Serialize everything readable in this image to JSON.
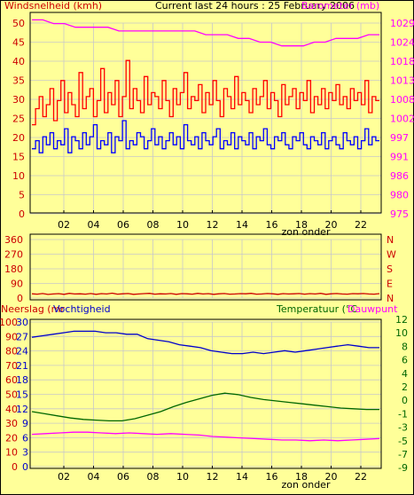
{
  "header": {
    "left_label": "Windsnelheid (kmh)",
    "center_label": "Current last 24 hours : 25 February 2006",
    "right_label": "Barometer (mb)"
  },
  "colors": {
    "background": "#ffff99",
    "grid": "#c8c8c8",
    "wind_max": "#ff0000",
    "wind_avg": "#0000ff",
    "barometer": "#ff00ff",
    "direction": "#cc0000",
    "humidity": "#0000cc",
    "temperature": "#006600",
    "dewpoint": "#ff00ff",
    "left_axis_text": "#cc0000",
    "humidity_axis_text": "#0000cc",
    "temp_axis_text": "#006600"
  },
  "chart_data": [
    {
      "type": "line",
      "name": "wind-barometer",
      "x_ticks": [
        "02",
        "04",
        "06",
        "08",
        "10",
        "12",
        "14",
        "16",
        "18",
        "20",
        "22"
      ],
      "x_note": "zon onder",
      "ylim_left": [
        0,
        50
      ],
      "yticks_left": [
        "50",
        "45",
        "40",
        "35",
        "30",
        "25",
        "20",
        "15",
        "10",
        "5",
        "0"
      ],
      "ylim_right": [
        975,
        1029
      ],
      "yticks_right": [
        "1029",
        "1024",
        "1018",
        "1013",
        "1008",
        "1002",
        "997",
        "991",
        "986",
        "980",
        "975"
      ],
      "series": [
        {
          "name": "Windsnelheid max",
          "axis": "left",
          "values": [
            22,
            26,
            29,
            24,
            27,
            31,
            23,
            28,
            33,
            25,
            30,
            27,
            24,
            35,
            26,
            29,
            31,
            24,
            28,
            36,
            25,
            30,
            27,
            33,
            24,
            29,
            38,
            26,
            31,
            28,
            25,
            34,
            27,
            30,
            29,
            26,
            33,
            28,
            24,
            31,
            27,
            30,
            35,
            26,
            29,
            28,
            32,
            25,
            30,
            27,
            33,
            28,
            24,
            31,
            29,
            26,
            34,
            27,
            30,
            28,
            25,
            31,
            27,
            29,
            33,
            26,
            30,
            28,
            24,
            32,
            27,
            29,
            31,
            26,
            30,
            28,
            33,
            25,
            29,
            27,
            31,
            26,
            30,
            28,
            32,
            27,
            29,
            26,
            31,
            28,
            30,
            27,
            33,
            25,
            29,
            28
          ]
        },
        {
          "name": "Windsnelheid gem",
          "axis": "left",
          "values": [
            16,
            18,
            15,
            19,
            17,
            20,
            16,
            18,
            17,
            21,
            15,
            19,
            18,
            16,
            20,
            17,
            19,
            22,
            16,
            18,
            17,
            20,
            15,
            19,
            18,
            23,
            16,
            18,
            17,
            20,
            19,
            16,
            18,
            21,
            17,
            19,
            16,
            18,
            20,
            17,
            19,
            16,
            22,
            18,
            17,
            19,
            16,
            20,
            18,
            17,
            19,
            21,
            16,
            18,
            17,
            20,
            16,
            19,
            18,
            17,
            20,
            16,
            19,
            18,
            21,
            17,
            16,
            19,
            18,
            20,
            17,
            16,
            19,
            18,
            20,
            17,
            16,
            19,
            18,
            17,
            20,
            16,
            18,
            19,
            17,
            16,
            20,
            18,
            17,
            19,
            16,
            18,
            21,
            17,
            19,
            18
          ]
        },
        {
          "name": "Barometer",
          "axis": "right",
          "values": [
            1027,
            1027,
            1026,
            1026,
            1025,
            1025,
            1025,
            1025,
            1024,
            1024,
            1024,
            1024,
            1024,
            1024,
            1024,
            1024,
            1023,
            1023,
            1023,
            1022,
            1022,
            1021,
            1021,
            1020,
            1020,
            1020,
            1021,
            1021,
            1022,
            1022,
            1022,
            1023,
            1023
          ]
        }
      ]
    },
    {
      "type": "line",
      "name": "wind-direction",
      "ylim": [
        0,
        360
      ],
      "yticks": [
        "360",
        "270",
        "180",
        "90",
        "0"
      ],
      "right_labels": [
        "N",
        "W",
        "S",
        "E",
        "N"
      ],
      "series": [
        {
          "name": "Windrichting",
          "values": [
            10,
            8,
            12,
            6,
            9,
            11,
            7,
            13,
            9,
            10,
            8,
            12,
            7,
            11,
            9,
            14,
            8,
            10,
            12,
            7,
            9,
            11,
            13,
            8,
            10,
            9,
            12,
            7,
            11,
            10,
            8,
            13,
            9,
            11,
            7,
            10,
            12,
            8,
            9,
            11,
            10,
            13,
            8,
            9,
            12,
            10,
            7,
            11,
            9,
            10,
            12,
            8,
            11,
            9,
            13,
            7,
            10,
            12,
            9,
            8,
            11,
            10,
            12,
            9,
            8,
            11
          ]
        }
      ]
    },
    {
      "type": "line",
      "name": "humidity-temperature",
      "x_ticks": [
        "02",
        "04",
        "06",
        "08",
        "10",
        "12",
        "14",
        "16",
        "18",
        "20",
        "22"
      ],
      "x_note": "zon onder",
      "header_left": "Neerslag (mr",
      "header_left2": "Vochtigheid",
      "header_right": "Temperatuur (°C",
      "header_right2": "Dauwpunt",
      "yticks_rain": [
        "100",
        "90",
        "80",
        "70",
        "60",
        "50",
        "40",
        "30",
        "20",
        "10",
        "0"
      ],
      "yticks_humidity": [
        "30",
        "27",
        "24",
        "21",
        "18",
        "15",
        "12",
        "9",
        "6",
        "3",
        "0"
      ],
      "yticks_temp": [
        "12",
        "10",
        "8",
        "6",
        "4",
        "2",
        "0",
        "-1",
        "-3",
        "-5",
        "-7",
        "-9"
      ],
      "ylim_humidity": [
        0,
        100
      ],
      "ylim_temp": [
        -9,
        12
      ],
      "series": [
        {
          "name": "Vochtigheid",
          "axis": "humidity",
          "values": [
            88,
            89,
            90,
            91,
            92,
            92,
            92,
            91,
            91,
            90,
            90,
            87,
            86,
            85,
            83,
            82,
            81,
            79,
            78,
            77,
            77,
            78,
            77,
            78,
            79,
            78,
            79,
            80,
            81,
            82,
            83,
            82,
            81,
            81
          ]
        },
        {
          "name": "Temperatuur",
          "axis": "temp",
          "values": [
            -1,
            -1.3,
            -1.6,
            -1.9,
            -2.1,
            -2.2,
            -2.3,
            -2.3,
            -2,
            -1.5,
            -1,
            -0.3,
            0.3,
            0.8,
            1.3,
            1.6,
            1.4,
            1.0,
            0.7,
            0.5,
            0.3,
            0.1,
            -0.1,
            -0.3,
            -0.5,
            -0.6,
            -0.7,
            -0.7
          ]
        },
        {
          "name": "Dauwpunt",
          "axis": "temp",
          "values": [
            -4.2,
            -4.1,
            -4.0,
            -3.9,
            -3.9,
            -4.0,
            -4.1,
            -4.0,
            -4.1,
            -4.2,
            -4.1,
            -4.2,
            -4.3,
            -4.5,
            -4.6,
            -4.7,
            -4.8,
            -4.9,
            -5.0,
            -5.0,
            -5.1,
            -5.0,
            -5.1,
            -5.0,
            -4.9,
            -4.8
          ]
        }
      ]
    }
  ]
}
